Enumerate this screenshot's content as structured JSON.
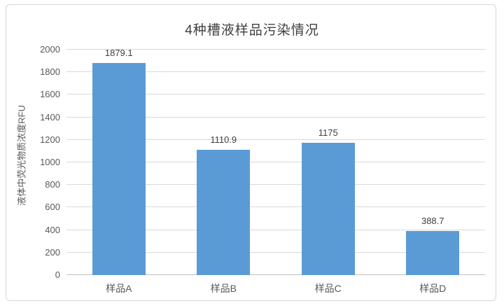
{
  "chart_data": {
    "type": "bar",
    "title": "4种槽液样品污染情况",
    "ylabel": "液体中荧光物质浓度RFU",
    "xlabel": "",
    "categories": [
      "样品A",
      "样品B",
      "样品C",
      "样品D"
    ],
    "values": [
      1879.1,
      1110.9,
      1175,
      388.7
    ],
    "data_labels": [
      "1879.1",
      "1110.9",
      "1175",
      "388.7"
    ],
    "ylim": [
      0,
      2000
    ],
    "ytick_step": 200,
    "grid": true,
    "legend_position": "none",
    "colors": {
      "bar": "#5B9BD5",
      "gridline": "#D9D9D9",
      "axis_line": "#BFBFBF",
      "title_text": "#404040",
      "tick_text": "#595959",
      "value_label_text": "#404040",
      "frame_border": "#D6D6D6",
      "background": "#FFFFFF"
    }
  }
}
